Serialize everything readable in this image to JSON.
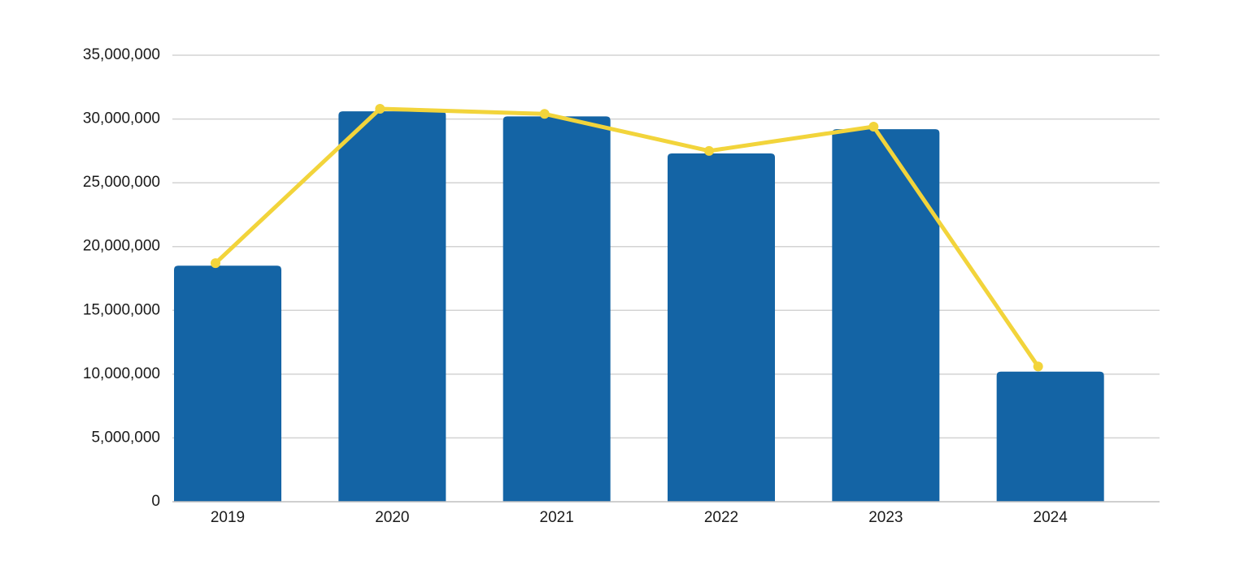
{
  "chart_data": {
    "type": "bar",
    "categories": [
      "2019",
      "2020",
      "2021",
      "2022",
      "2023",
      "2024"
    ],
    "series": [
      {
        "type": "bar",
        "values": [
          18500000,
          30600000,
          30200000,
          27300000,
          29200000,
          10200000
        ],
        "color": "#1464a5"
      },
      {
        "type": "line",
        "values": [
          18700000,
          30800000,
          30400000,
          27500000,
          29400000,
          10600000
        ],
        "color": "#f2d43b"
      }
    ],
    "yticks": [
      "0",
      "5,000,000",
      "10,000,000",
      "15,000,000",
      "20,000,000",
      "25,000,000",
      "30,000,000",
      "35,000,000"
    ],
    "ylim": [
      0,
      35000000
    ],
    "grid": true
  }
}
